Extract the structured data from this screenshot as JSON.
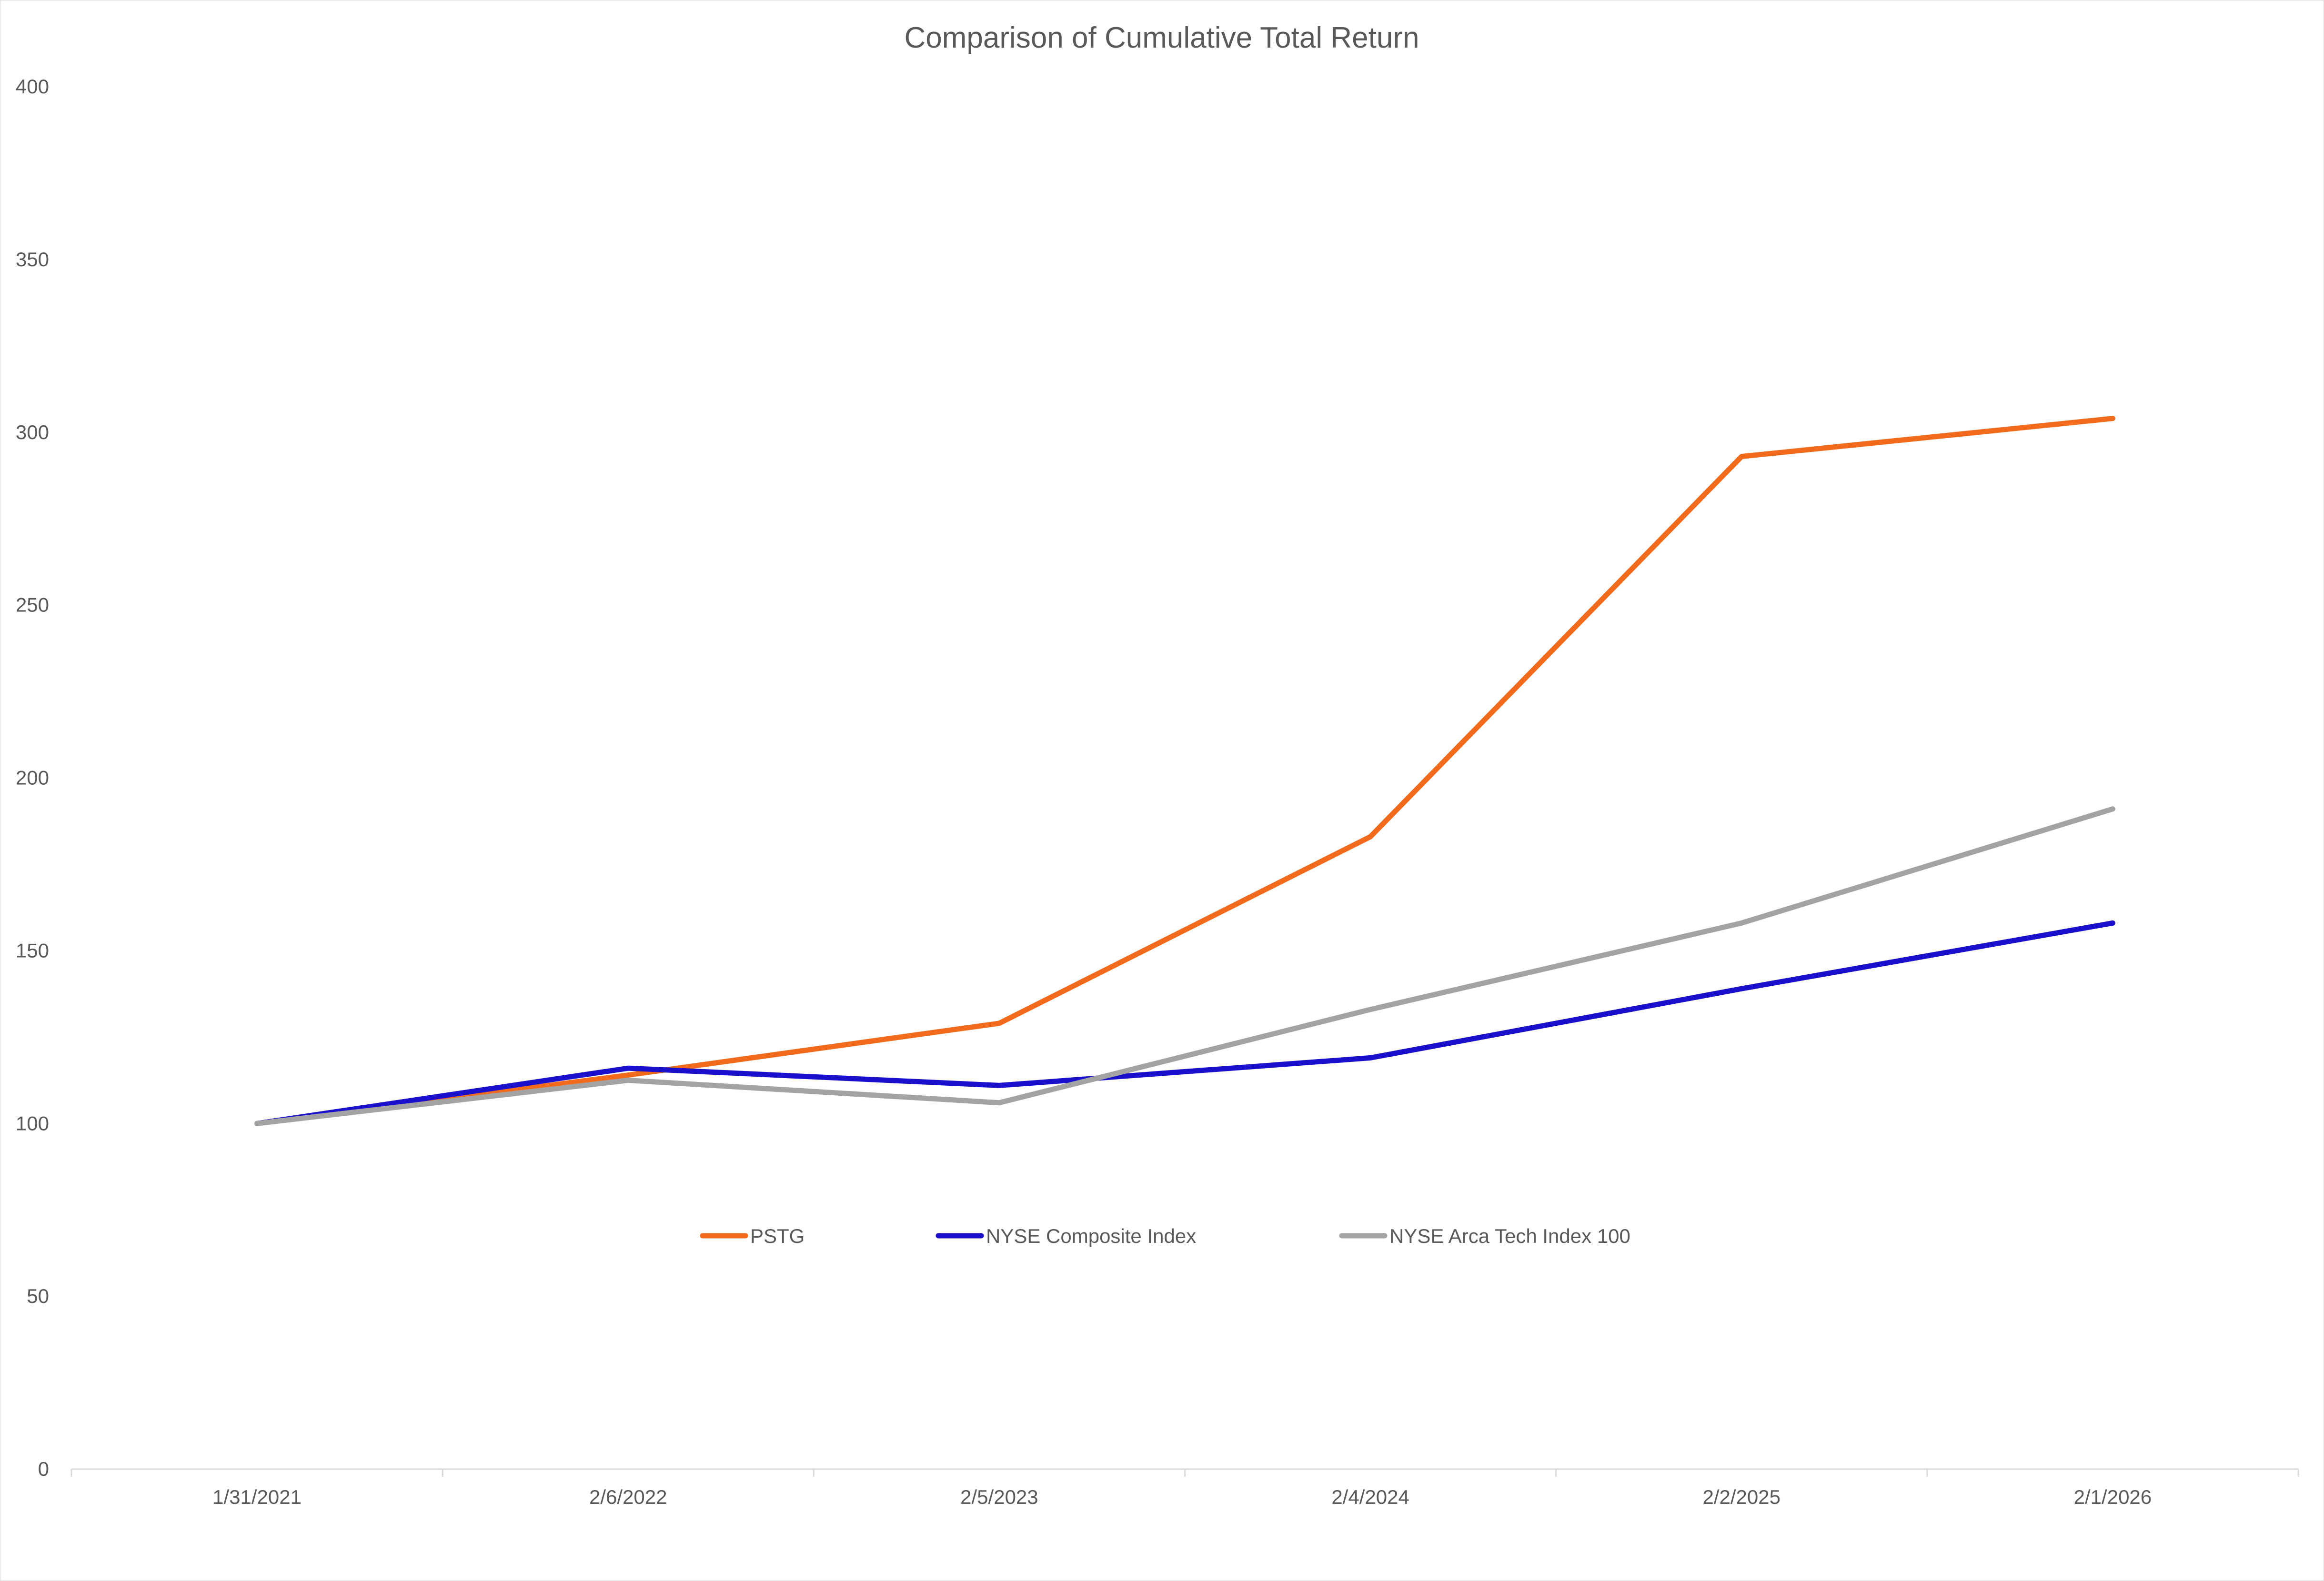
{
  "chart_data": {
    "type": "line",
    "title": "Comparison of Cumulative Total Return",
    "xlabel": "",
    "ylabel": "",
    "x": [
      "1/31/2021",
      "2/6/2022",
      "2/5/2023",
      "2/4/2024",
      "2/2/2025",
      "2/1/2026"
    ],
    "ylim": [
      0,
      400
    ],
    "yticks": [
      "0",
      "50",
      "100",
      "150",
      "200",
      "250",
      "300",
      "350",
      "400"
    ],
    "grid": false,
    "legend_position": "inside-center",
    "series": [
      {
        "name": "PSTG",
        "color": "#f26b1d",
        "values": [
          100,
          114,
          129,
          183,
          293,
          304
        ]
      },
      {
        "name": "NYSE Composite Index",
        "color": "#1a10cc",
        "values": [
          100,
          116,
          111,
          119,
          139,
          158
        ]
      },
      {
        "name": "NYSE Arca Tech Index 100",
        "color": "#a3a3a3",
        "values": [
          100,
          112.5,
          106,
          133,
          158,
          191
        ]
      }
    ]
  }
}
